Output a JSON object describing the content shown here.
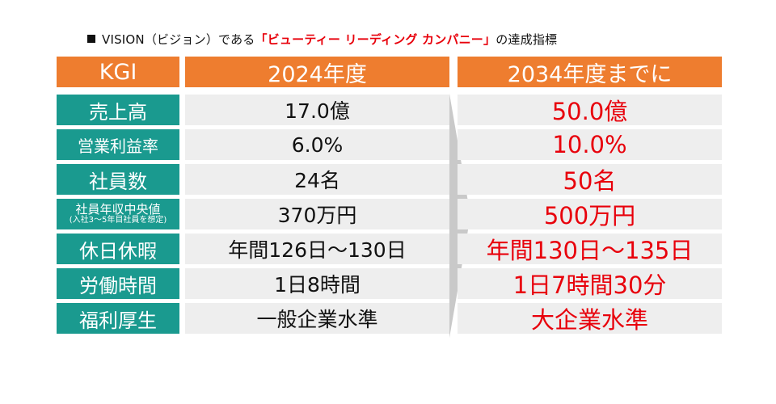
{
  "heading": {
    "prefix": "VISION（ビジョン）である",
    "highlight": "「ビューティー リーディング カンパニー」",
    "suffix": "の達成指標"
  },
  "table": {
    "headers": [
      "KGI",
      "2024年度",
      "2034年度までに"
    ],
    "rows": [
      {
        "label": "売上高",
        "current": "17.0億",
        "target": "50.0億"
      },
      {
        "label": "営業利益率",
        "current": "6.0%",
        "target": "10.0%"
      },
      {
        "label": "社員数",
        "current": "24名",
        "target": "50名"
      },
      {
        "label": "社員年収中央値",
        "label_note": "(入社3～5年目社員を想定)",
        "current": "370万円",
        "target": "500万円"
      },
      {
        "label": "休日休暇",
        "current": "年間126日～130日",
        "target": "年間130日～135日"
      },
      {
        "label": "労働時間",
        "current": "1日8時間",
        "target": "1日7時間30分"
      },
      {
        "label": "福利厚生",
        "current": "一般企業水準",
        "target": "大企業水準"
      }
    ]
  },
  "colors": {
    "header_bg": "#ee7d2f",
    "label_bg": "#1a9a8f",
    "cell_bg": "#eeeeee",
    "target_text": "#e8000b",
    "arrow": "#c9c9c9"
  }
}
